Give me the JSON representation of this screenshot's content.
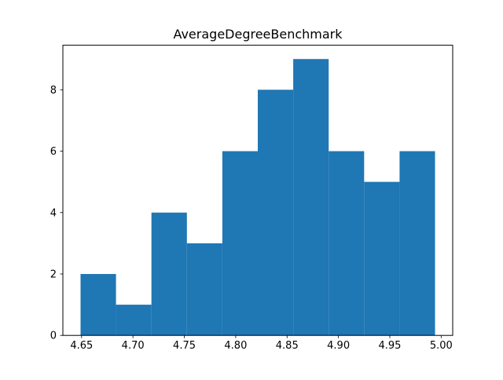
{
  "chart_data": {
    "type": "histogram",
    "title": "AverageDegreeBenchmark",
    "xlabel": "",
    "ylabel": "",
    "bins": [
      {
        "start": 4.649,
        "end": 4.6835,
        "count": 2
      },
      {
        "start": 4.6835,
        "end": 4.718,
        "count": 1
      },
      {
        "start": 4.718,
        "end": 4.7525,
        "count": 4
      },
      {
        "start": 4.7525,
        "end": 4.787,
        "count": 3
      },
      {
        "start": 4.787,
        "end": 4.8215,
        "count": 6
      },
      {
        "start": 4.8215,
        "end": 4.856,
        "count": 8
      },
      {
        "start": 4.856,
        "end": 4.8905,
        "count": 9
      },
      {
        "start": 4.8905,
        "end": 4.925,
        "count": 6
      },
      {
        "start": 4.925,
        "end": 4.9595,
        "count": 5
      },
      {
        "start": 4.9595,
        "end": 4.994,
        "count": 6
      }
    ],
    "xlim": [
      4.6318,
      5.0112
    ],
    "ylim": [
      0,
      9.45
    ],
    "xticks": [
      4.65,
      4.7,
      4.75,
      4.8,
      4.85,
      4.9,
      4.95,
      5.0
    ],
    "xtick_labels": [
      "4.65",
      "4.70",
      "4.75",
      "4.80",
      "4.85",
      "4.90",
      "4.95",
      "5.00"
    ],
    "yticks": [
      0,
      2,
      4,
      6,
      8
    ],
    "ytick_labels": [
      "0",
      "2",
      "4",
      "6",
      "8"
    ],
    "bar_color": "#1f77b4",
    "grid": false,
    "legend": "none"
  }
}
